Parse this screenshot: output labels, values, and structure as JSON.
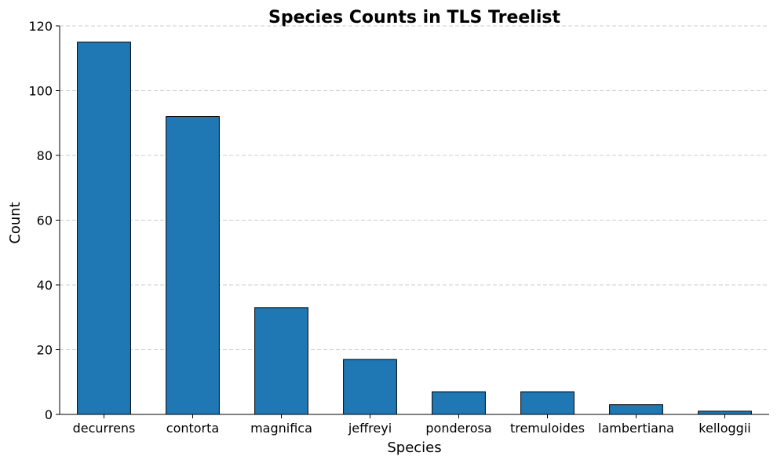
{
  "chart_data": {
    "type": "bar",
    "title": "Species Counts in TLS Treelist",
    "xlabel": "Species",
    "ylabel": "Count",
    "categories": [
      "decurrens",
      "contorta",
      "magnifica",
      "jeffreyi",
      "ponderosa",
      "tremuloides",
      "lambertiana",
      "kelloggii"
    ],
    "values": [
      115,
      92,
      33,
      17,
      7,
      7,
      3,
      1
    ],
    "ylim": [
      0,
      120
    ],
    "yticks": [
      0,
      20,
      40,
      60,
      80,
      100,
      120
    ],
    "grid": "horizontal dashed",
    "legend": "none",
    "colors": {
      "bar_fill": "#1f77b4",
      "bar_edge": "#000000",
      "grid": "#cccccc",
      "axis": "#000000"
    }
  }
}
